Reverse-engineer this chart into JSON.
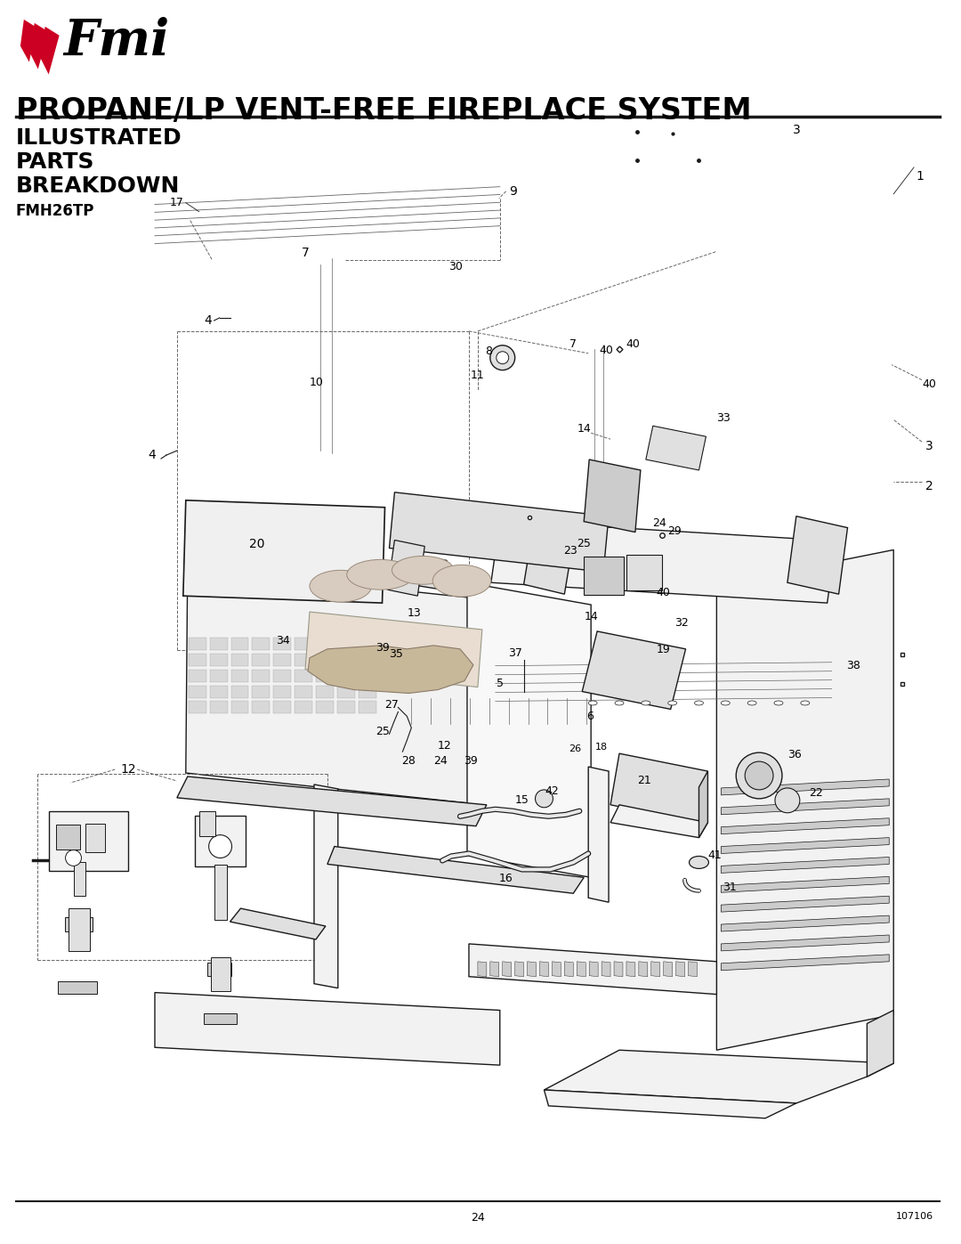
{
  "title": "PROPANE/LP VENT-FREE FIREPLACE SYSTEM",
  "sub1": "ILLUSTRATED",
  "sub2": "PARTS",
  "sub3": "BREAKDOWN",
  "model": "FMH26TP",
  "page": "24",
  "doc": "107106",
  "bg": "#ffffff",
  "black": "#000000",
  "red": "#cc0022",
  "gray1": "#f2f2f2",
  "gray2": "#e0e0e0",
  "gray3": "#cccccc",
  "gray4": "#b0b0b0",
  "line": "#1a1a1a",
  "dline": "#666666"
}
